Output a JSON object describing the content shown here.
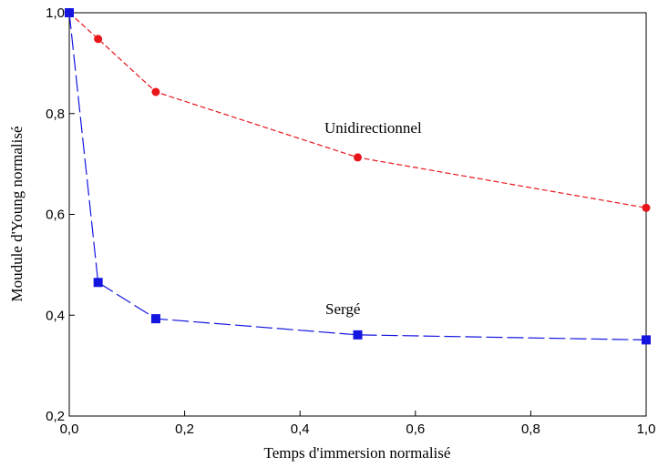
{
  "chart_data": {
    "type": "line",
    "title": "",
    "xlabel": "Temps d'immersion normalisé",
    "ylabel": "Moudule d'Young normalisé",
    "xlim": [
      0,
      1
    ],
    "ylim": [
      0.2,
      1.0
    ],
    "xticks": [
      {
        "value": 0.0,
        "label": "0,0"
      },
      {
        "value": 0.2,
        "label": "0,2"
      },
      {
        "value": 0.4,
        "label": "0,4"
      },
      {
        "value": 0.6,
        "label": "0,6"
      },
      {
        "value": 0.8,
        "label": "0,8"
      },
      {
        "value": 1.0,
        "label": "1,0"
      }
    ],
    "yticks": [
      {
        "value": 0.2,
        "label": "0,2"
      },
      {
        "value": 0.4,
        "label": "0,4"
      },
      {
        "value": 0.6,
        "label": "0,6"
      },
      {
        "value": 0.8,
        "label": "0,8"
      },
      {
        "value": 1.0,
        "label": "1,0"
      }
    ],
    "grid": false,
    "legend": "none",
    "series": [
      {
        "name": "Unidirectionnel",
        "color": "#e8161b",
        "marker": "circle",
        "line_style": "dashed",
        "x": [
          0.0,
          0.05,
          0.15,
          0.5,
          1.0
        ],
        "y": [
          1.0,
          0.948,
          0.843,
          0.713,
          0.613
        ]
      },
      {
        "name": "Sergé",
        "color": "#1515e0",
        "marker": "square",
        "line_style": "long-dashed",
        "x": [
          0.0,
          0.05,
          0.15,
          0.5,
          1.0
        ],
        "y": [
          1.0,
          0.465,
          0.393,
          0.361,
          0.351
        ]
      }
    ],
    "annotations": [
      {
        "text": "Unidirectionnel",
        "series": 0
      },
      {
        "text": "Sergé",
        "series": 1
      }
    ]
  }
}
